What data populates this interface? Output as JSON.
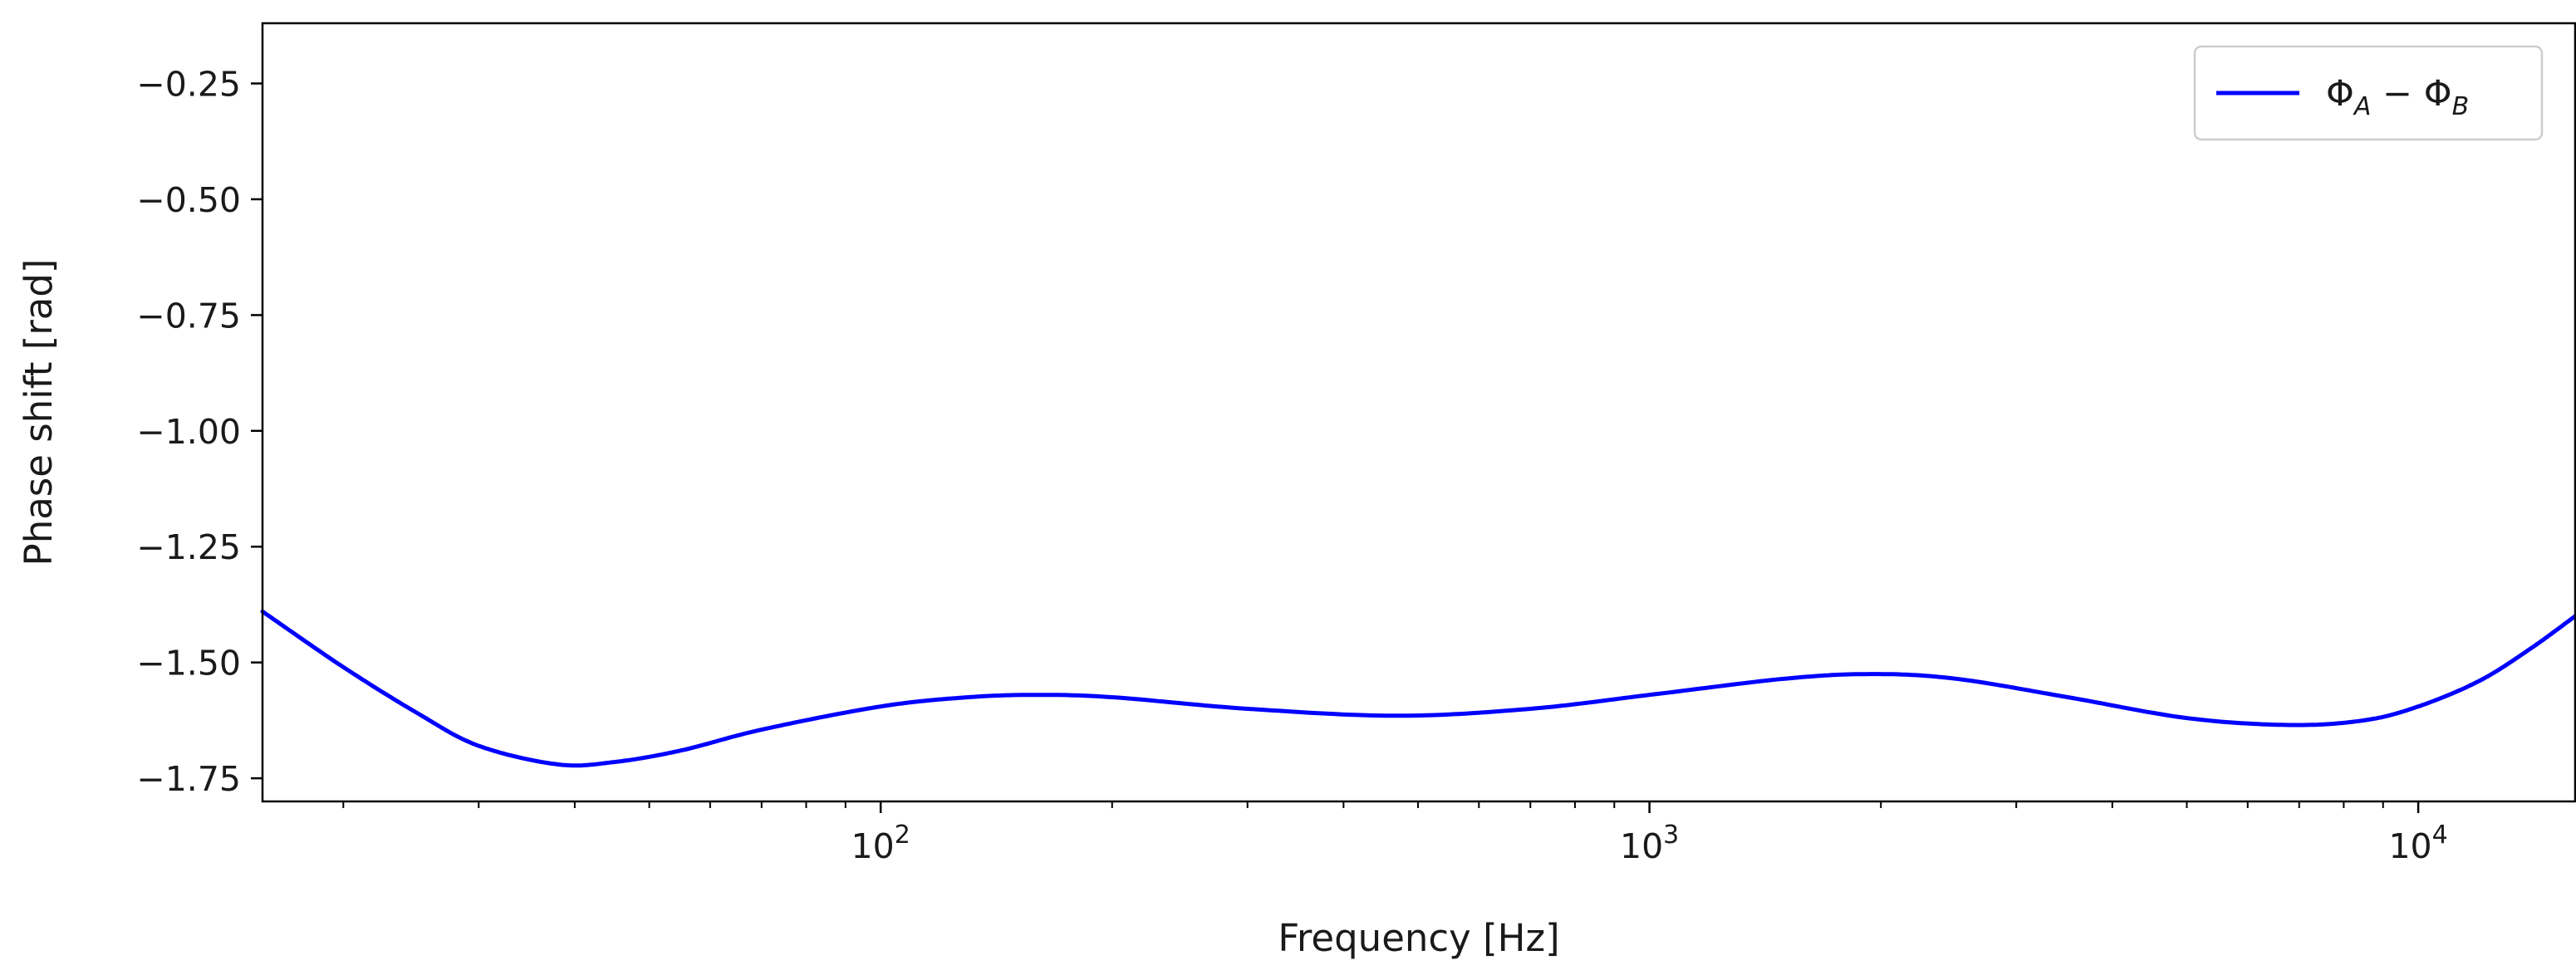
{
  "chart_data": {
    "type": "line",
    "title": "",
    "xlabel": "Frequency [Hz]",
    "ylabel": "Phase shift [rad]",
    "xscale": "log",
    "xlim": [
      15.7,
      16000
    ],
    "ylim": [
      -1.8,
      -0.12
    ],
    "grid": false,
    "legend_position": "top-right",
    "x_ticks": [
      {
        "value": 100,
        "base": "10",
        "exp": "2"
      },
      {
        "value": 1000,
        "base": "10",
        "exp": "3"
      },
      {
        "value": 10000,
        "base": "10",
        "exp": "4"
      }
    ],
    "y_ticks": [
      {
        "value": -0.25,
        "label": "−0.25"
      },
      {
        "value": -0.5,
        "label": "−0.50"
      },
      {
        "value": -0.75,
        "label": "−0.75"
      },
      {
        "value": -1.0,
        "label": "−1.00"
      },
      {
        "value": -1.25,
        "label": "−1.25"
      },
      {
        "value": -1.5,
        "label": "−1.50"
      },
      {
        "value": -1.75,
        "label": "−1.75"
      }
    ],
    "series": [
      {
        "name": "ΦA − ΦB",
        "name_parts": {
          "phi": "Φ",
          "a": "A",
          "minus": " − ",
          "b": "B"
        },
        "color": "#0000ff",
        "x": [
          15.7,
          20,
          25,
          30,
          38,
          45,
          55,
          70,
          100,
          130,
          160,
          200,
          300,
          470,
          700,
          1000,
          1500,
          1950,
          2500,
          3500,
          5000,
          6800,
          8500,
          10000,
          12000,
          14000,
          16000
        ],
        "y": [
          -1.39,
          -1.51,
          -1.61,
          -1.68,
          -1.72,
          -1.715,
          -1.69,
          -1.645,
          -1.595,
          -1.575,
          -1.57,
          -1.575,
          -1.6,
          -1.615,
          -1.6,
          -1.57,
          -1.535,
          -1.525,
          -1.535,
          -1.575,
          -1.62,
          -1.635,
          -1.625,
          -1.595,
          -1.54,
          -1.47,
          -1.4
        ]
      }
    ]
  }
}
